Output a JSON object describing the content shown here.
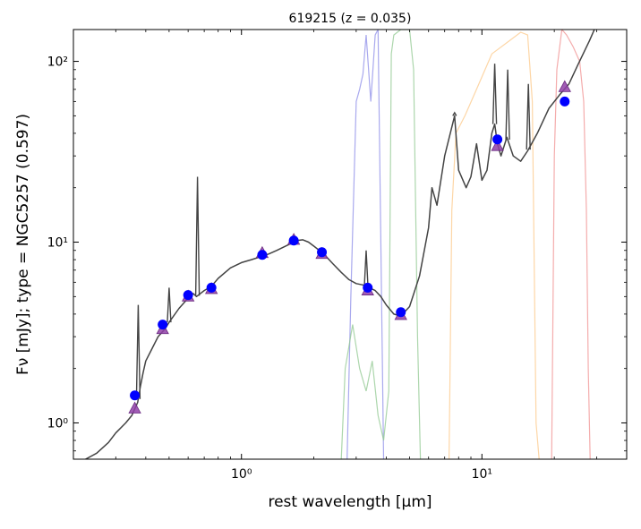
{
  "chart_data": {
    "type": "line",
    "title": "619215 (z = 0.035)",
    "xlabel": "rest wavelength [μm]",
    "ylabel": "Fν [mJy];  type = NGC5257 (0.597)",
    "xscale": "log",
    "yscale": "log",
    "xlim": [
      0.2,
      40
    ],
    "ylim": [
      0.63,
      150
    ],
    "xticks": [
      {
        "value": 1,
        "label": "10⁰"
      },
      {
        "value": 10,
        "label": "10¹"
      }
    ],
    "yticks": [
      {
        "value": 1,
        "label": "10⁰"
      },
      {
        "value": 10,
        "label": "10¹"
      },
      {
        "value": 100,
        "label": "10²"
      }
    ],
    "grid": false,
    "legend": "none",
    "series": [
      {
        "kind": "template-spectrum",
        "color": "#444444",
        "x": [
          0.2,
          0.22,
          0.25,
          0.28,
          0.3,
          0.33,
          0.35,
          0.37,
          0.38,
          0.39,
          0.4,
          0.42,
          0.45,
          0.48,
          0.5,
          0.55,
          0.6,
          0.63,
          0.65,
          0.7,
          0.75,
          0.8,
          0.9,
          1.0,
          1.1,
          1.2,
          1.3,
          1.4,
          1.5,
          1.6,
          1.7,
          1.8,
          1.9,
          2.0,
          2.2,
          2.4,
          2.6,
          2.8,
          3.0,
          3.2,
          3.3,
          3.4,
          3.6,
          3.8,
          4.0,
          4.3,
          4.6,
          5.0,
          5.5,
          6.0,
          6.2,
          6.5,
          7.0,
          7.7,
          8.0,
          8.6,
          9.0,
          9.5,
          10.0,
          10.5,
          11.0,
          11.3,
          11.6,
          12.0,
          12.7,
          13.5,
          14.5,
          15.5,
          17.0,
          19.0,
          21.0,
          23.0,
          25.0,
          28.0,
          30.0
        ],
        "y": [
          0.6,
          0.62,
          0.68,
          0.78,
          0.88,
          1.0,
          1.1,
          1.3,
          1.6,
          1.9,
          2.2,
          2.5,
          3.0,
          3.3,
          3.6,
          4.3,
          4.9,
          5.2,
          5.0,
          5.4,
          5.7,
          6.3,
          7.2,
          7.7,
          8.0,
          8.3,
          8.6,
          9.0,
          9.4,
          9.8,
          10.2,
          10.3,
          10.0,
          9.5,
          8.6,
          7.6,
          6.8,
          6.2,
          5.9,
          5.8,
          5.7,
          5.6,
          5.4,
          5.0,
          4.5,
          4.0,
          3.9,
          4.4,
          6.5,
          12.0,
          20.0,
          16.0,
          30.0,
          50.0,
          25.0,
          20.0,
          23.0,
          35.0,
          22.0,
          25.0,
          40.0,
          45.0,
          35.0,
          30.0,
          38.0,
          30.0,
          28.0,
          32.0,
          40.0,
          55.0,
          65.0,
          75.0,
          95.0,
          130.0,
          160.0
        ],
        "spikes": [
          {
            "x": 0.372,
            "y": 4.5
          },
          {
            "x": 0.5,
            "y": 5.6
          },
          {
            "x": 0.6563,
            "y": 23.0
          },
          {
            "x": 3.3,
            "y": 9.0
          },
          {
            "x": 7.7,
            "y": 52.0
          },
          {
            "x": 11.3,
            "y": 97.0
          },
          {
            "x": 12.8,
            "y": 90.0
          },
          {
            "x": 15.6,
            "y": 75.0
          }
        ]
      },
      {
        "kind": "filter-curve",
        "color": "#8c8ce8",
        "x": [
          2.75,
          2.85,
          3.0,
          3.1,
          3.2,
          3.3,
          3.45,
          3.6,
          3.7,
          3.8,
          3.9
        ],
        "y": [
          0.63,
          5.0,
          60.0,
          70.0,
          85.0,
          140.0,
          60.0,
          140.0,
          150.0,
          10.0,
          0.63
        ]
      },
      {
        "kind": "filter-curve",
        "color": "#90c890",
        "x": [
          2.6,
          2.7,
          2.9,
          3.1,
          3.3,
          3.5,
          3.7,
          3.9,
          4.1,
          4.2,
          4.3,
          4.6,
          5.0,
          5.2,
          5.4,
          5.55
        ],
        "y": [
          0.63,
          2.0,
          3.5,
          2.0,
          1.5,
          2.2,
          1.1,
          0.8,
          1.5,
          110.0,
          140.0,
          150.0,
          150.0,
          90.0,
          3.0,
          0.63
        ]
      },
      {
        "kind": "filter-curve",
        "color": "#fcc888",
        "x": [
          7.3,
          7.5,
          7.8,
          8.5,
          9.5,
          11.0,
          13.0,
          14.5,
          15.5,
          16.2,
          16.8,
          17.3
        ],
        "y": [
          0.63,
          15.0,
          40.0,
          50.0,
          70.0,
          110.0,
          130.0,
          145.0,
          140.0,
          60.0,
          1.0,
          0.63
        ]
      },
      {
        "kind": "filter-curve",
        "color": "#f09090",
        "x": [
          19.5,
          20.0,
          20.5,
          21.5,
          22.5,
          24.0,
          25.5,
          26.5,
          27.2,
          27.7,
          28.2
        ],
        "y": [
          0.63,
          30.0,
          90.0,
          150.0,
          140.0,
          120.0,
          100.0,
          60.0,
          15.0,
          2.0,
          0.63
        ]
      },
      {
        "kind": "model-photometry",
        "marker": "triangle",
        "color": "#9040a8",
        "x": [
          0.36,
          0.47,
          0.6,
          0.75,
          1.22,
          1.65,
          2.16,
          3.35,
          4.6,
          11.6,
          22.1
        ],
        "y": [
          1.2,
          3.3,
          5.0,
          5.5,
          8.7,
          10.3,
          8.6,
          5.4,
          3.95,
          34.0,
          72.0
        ]
      },
      {
        "kind": "observed-photometry",
        "marker": "circle",
        "color": "#0000ff",
        "x": [
          0.36,
          0.47,
          0.6,
          0.75,
          1.22,
          1.65,
          2.16,
          3.35,
          4.6,
          11.6,
          22.1
        ],
        "y": [
          1.42,
          3.5,
          5.1,
          5.6,
          8.5,
          10.2,
          8.8,
          5.6,
          4.1,
          37.0,
          60.0
        ]
      }
    ]
  }
}
